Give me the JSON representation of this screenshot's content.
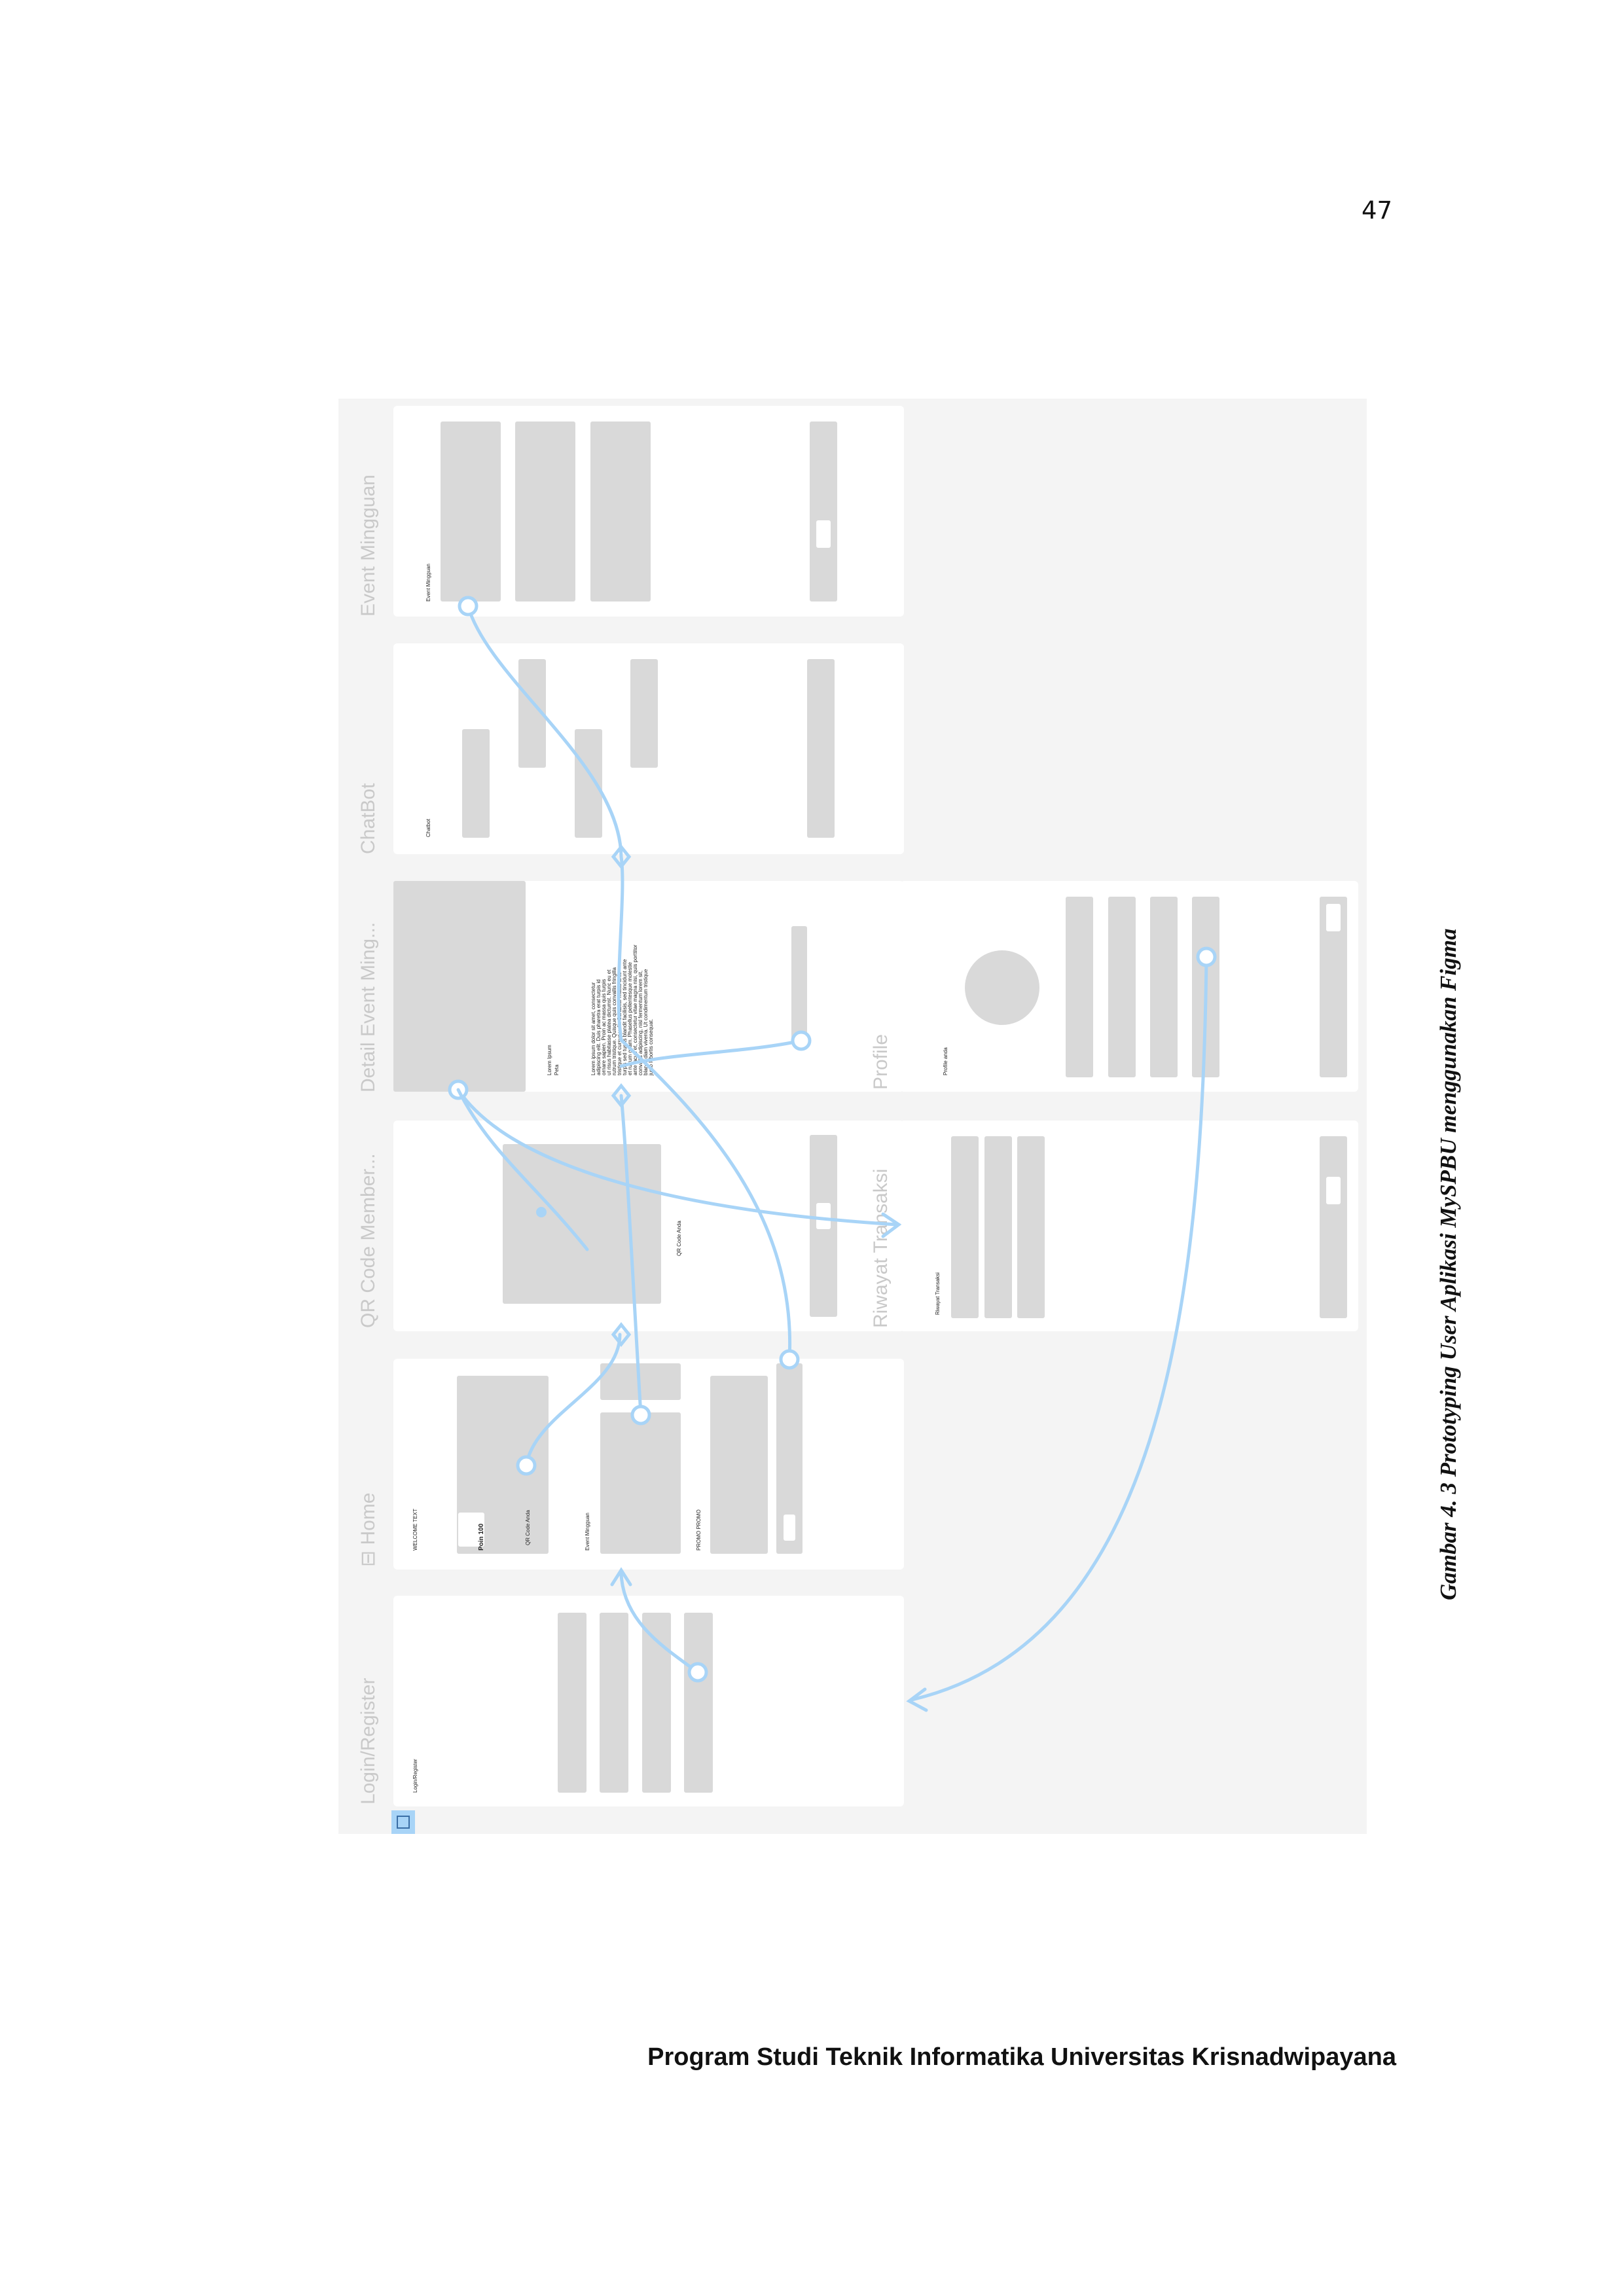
{
  "page_number": "47",
  "figure": {
    "frames": {
      "login": {
        "title": "Login/Register",
        "header": "Login/Register"
      },
      "home": {
        "title": "⊟ Home",
        "welcome": "WELCOME TEXT",
        "points": "Poin 100",
        "qr_button": "QR Code Anda",
        "event_label": "Event Mingguan",
        "promo_label": "PROMO PROMO"
      },
      "qr": {
        "title": "QR Code Member...",
        "caption": "QR Code Anda"
      },
      "detail": {
        "title": "Detail Event Ming...",
        "event_title": "Lorem Ipsum",
        "event_sub": "Peta",
        "lorem": [
          "Lorem ipsum dolor sit amet, consectetur",
          "adipiscing elit. Duis pharetra erat turpis id",
          "ornare sapien. Proin ac massa quis turpis",
          "ut risus habitasse platea dictumst. Nunc eu et",
          "rutrum tristique. Quisque quis convallis fringilla",
          "tristique et cursus velit. Curabitur mattis ante",
          "turpis sed turpis blandit facilisis, sed tincidunt ante",
          "et rutrum quam. Phasellus pellentesque molestie",
          "ante lacus et, consectetur vitae magna nisi, quis porttitor",
          "convallis adipiscing, nisl fermentum lorem sit,",
          "blandit diam viverra. Ut condimentum tristique",
          "justo lobortis consequat."
        ]
      },
      "chatbot": {
        "title": "ChatBot",
        "header": "Chatbot"
      },
      "event": {
        "title": "Event Mingguan",
        "header": "Event Mingguan"
      },
      "riwayat": {
        "title": "Riwayat Transaksi",
        "header": "Riwayat Transaksi"
      },
      "profile": {
        "title": "Profile",
        "header": "Profile anda"
      }
    },
    "colors": {
      "canvas": "#f4f4f4",
      "frame": "#ffffff",
      "block": "#d9d9d9",
      "flow": "#a8d4f7",
      "label": "#c9c9c9"
    }
  },
  "caption": "Gambar 4. 3 Prototyping User Aplikasi MySPBU menggunakan Figma",
  "footer": "Program Studi Teknik Informatika Universitas Krisnadwipayana"
}
